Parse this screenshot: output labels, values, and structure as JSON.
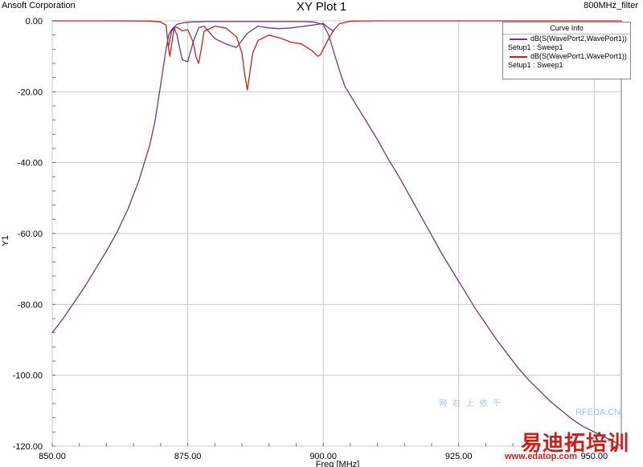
{
  "header": {
    "company": "Ansoft Corporation",
    "title": "XY Plot 1",
    "project": "800MHz_filter"
  },
  "chart_data": {
    "type": "line",
    "title": "XY Plot 1",
    "xlabel": "Freq [MHz]",
    "ylabel": "Y1",
    "xlim": [
      850,
      955
    ],
    "ylim": [
      -120,
      0
    ],
    "xticks": [
      850,
      875,
      900,
      925,
      950
    ],
    "xtick_labels": [
      "850.00",
      "875.00",
      "900.00",
      "925.00",
      "950.00"
    ],
    "yticks": [
      0,
      -20,
      -40,
      -60,
      -80,
      -100,
      -120
    ],
    "ytick_labels": [
      "0.00",
      "-20.00",
      "-40.00",
      "-60.00",
      "-80.00",
      "-100.00",
      "-120.00"
    ],
    "grid": true,
    "legend": {
      "title": "Curve Info",
      "placement": "top-right"
    },
    "series": [
      {
        "name": "dB(S(WavePort2,WavePort1))",
        "setup": "Setup1 : Sweep1",
        "color": "#6b3d6e",
        "x": [
          850,
          852,
          854,
          856,
          858,
          860,
          862,
          864,
          866,
          868,
          869,
          870,
          871,
          871.5,
          872,
          873,
          874,
          875,
          876,
          877,
          878,
          880,
          882,
          884,
          886,
          888,
          890,
          892,
          894,
          896,
          898,
          900,
          901,
          902,
          903,
          904,
          906,
          908,
          910,
          912,
          914,
          916,
          918,
          920,
          922,
          924,
          926,
          928,
          930,
          932,
          934,
          936,
          938,
          940,
          942,
          944,
          946,
          948,
          950,
          952,
          954,
          955
        ],
        "values": [
          -88,
          -84,
          -79.5,
          -75,
          -70,
          -65,
          -59.5,
          -53,
          -45,
          -35,
          -28,
          -18,
          -8,
          -4,
          -2.5,
          -1,
          -0.6,
          -0.4,
          -0.3,
          -0.3,
          -0.2,
          -0.2,
          -0.2,
          -0.2,
          -0.2,
          -0.2,
          -0.2,
          -0.2,
          -0.2,
          -0.2,
          -0.3,
          -1,
          -4,
          -9,
          -14,
          -18.5,
          -23.5,
          -28.5,
          -33.5,
          -39,
          -44,
          -49.5,
          -55,
          -60.5,
          -66,
          -71,
          -76,
          -81,
          -85.5,
          -90,
          -94,
          -98,
          -101.5,
          -104.5,
          -107.5,
          -110,
          -112.5,
          -114.5,
          -116,
          -117.5,
          -119,
          -120
        ]
      },
      {
        "name": "dB(S(WavePort1,WavePort1))",
        "setup": "Setup1 : Sweep1",
        "color": "#cc1c1c",
        "x": [
          850,
          860,
          868,
          870,
          871,
          871.4,
          871.7,
          872,
          872.5,
          873,
          874,
          875,
          876,
          876.5,
          877,
          877.5,
          878,
          880,
          882,
          884,
          885,
          885.5,
          886,
          887,
          888,
          890,
          892,
          894,
          896,
          898,
          899,
          899.5,
          900,
          901,
          902,
          903,
          905,
          910,
          920,
          935,
          955
        ],
        "values": [
          0,
          0,
          -0.05,
          -0.3,
          -1.2,
          -7,
          -10,
          -7,
          -2,
          -1.8,
          -2.8,
          -2.5,
          -6,
          -10,
          -12,
          -8,
          -3,
          -1.5,
          -2,
          -4.5,
          -9,
          -15,
          -19.5,
          -9,
          -5.5,
          -4,
          -4.8,
          -6,
          -6.5,
          -8.5,
          -10,
          -9.5,
          -8,
          -5,
          -2.5,
          -0.8,
          -0.1,
          0,
          0,
          0,
          0
        ]
      },
      {
        "name": "",
        "color": "#6b3d6e",
        "x": [
          871.5,
          872,
          872.5,
          873,
          874,
          875,
          876,
          877,
          878,
          880,
          882,
          884,
          886,
          888,
          890,
          892,
          894,
          896,
          898,
          899,
          900,
          901,
          902
        ],
        "values": [
          -7,
          -3,
          -2,
          -4,
          -11,
          -11.5,
          -6,
          -2,
          -1.5,
          -5,
          -6.5,
          -7.5,
          -3.5,
          -1.5,
          -2,
          -2.2,
          -2,
          -1.6,
          -1.2,
          -1,
          -0.7,
          -2,
          -3
        ]
      }
    ]
  },
  "legend": {
    "title": "Curve Info",
    "items": [
      {
        "name": "dB(S(WavePort2,WavePort1))",
        "setup": "Setup1 : Sweep1",
        "color": "#6b3d6e"
      },
      {
        "name": "dB(S(WavePort1,WavePort1))",
        "setup": "Setup1 : Sweep1",
        "color": "#cc1c1c"
      }
    ]
  },
  "watermark": {
    "site": "RFEDA.CN",
    "cn_small": "网 右 上 依 千",
    "brand": "易迪拓培训",
    "url": "www.edatop.com"
  }
}
